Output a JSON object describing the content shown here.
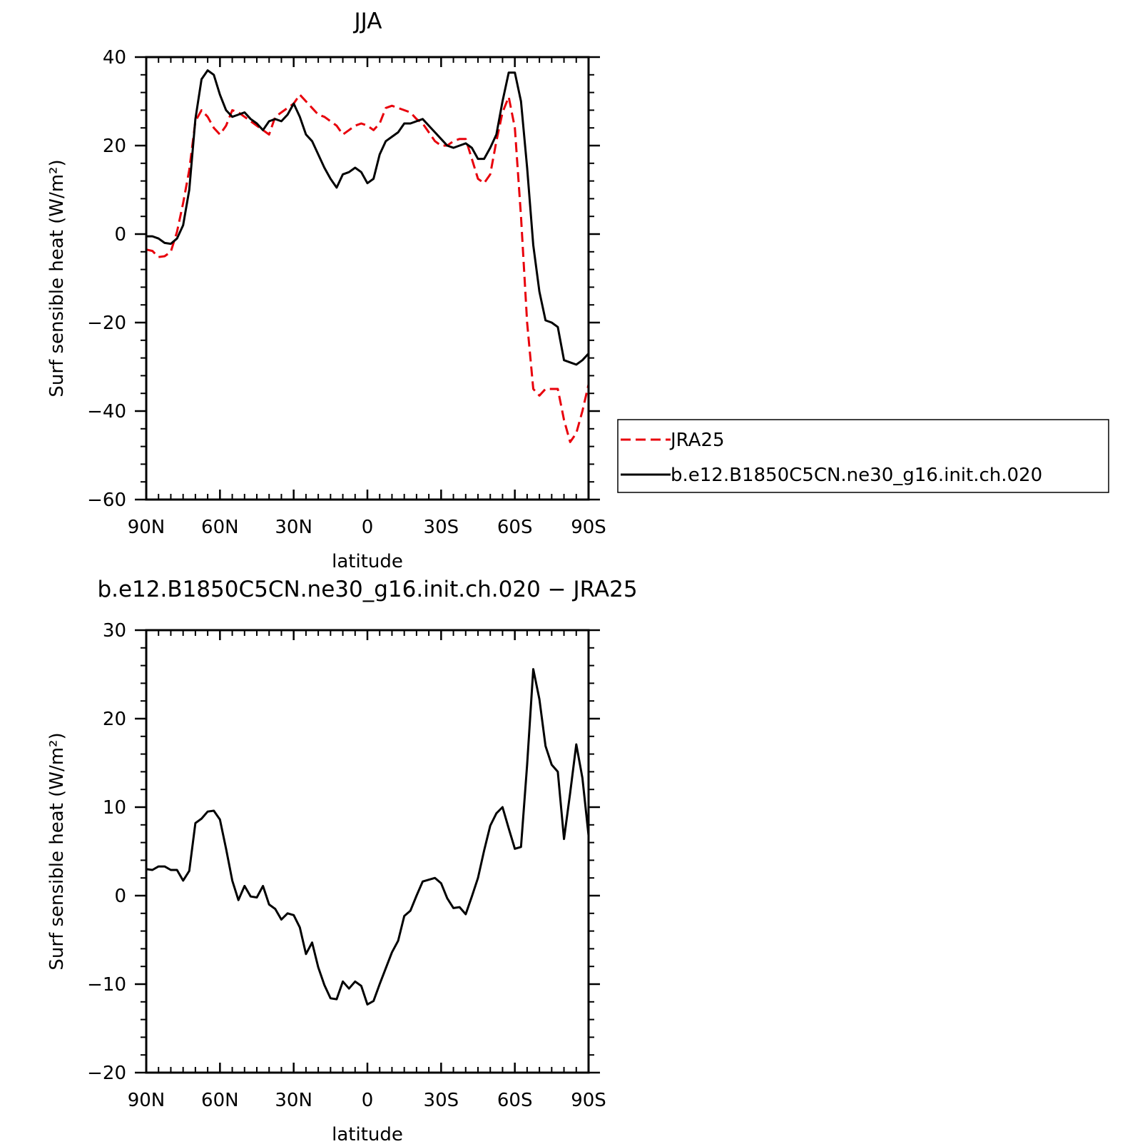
{
  "chart_data": [
    {
      "type": "line",
      "title": "JJA",
      "xlabel": "latitude",
      "ylabel": "Surf sensible heat (W/m²)",
      "xlim": [
        90,
        -90
      ],
      "ylim": [
        -60,
        40
      ],
      "x_ticks": [
        90,
        60,
        30,
        0,
        -30,
        -60,
        -90
      ],
      "x_tick_labels": [
        "90N",
        "60N",
        "30N",
        "0",
        "30S",
        "60S",
        "90S"
      ],
      "y_ticks": [
        -60,
        -40,
        -20,
        0,
        20,
        40
      ],
      "y_tick_labels": [
        "−60",
        "−40",
        "−20",
        "0",
        "20",
        "40"
      ],
      "x": [
        90,
        87.5,
        85,
        82.5,
        80,
        77.5,
        75,
        72.5,
        70,
        67.5,
        65,
        62.5,
        60,
        57.5,
        55,
        52.5,
        50,
        47.5,
        45,
        42.5,
        40,
        37.5,
        35,
        32.5,
        30,
        27.5,
        25,
        22.5,
        20,
        17.5,
        15,
        12.5,
        10,
        7.5,
        5,
        2.5,
        0,
        -2.5,
        -5,
        -7.5,
        -10,
        -12.5,
        -15,
        -17.5,
        -20,
        -22.5,
        -25,
        -27.5,
        -30,
        -32.5,
        -35,
        -37.5,
        -40,
        -42.5,
        -45,
        -47.5,
        -50,
        -52.5,
        -55,
        -57.5,
        -60,
        -62.5,
        -65,
        -67.5,
        -70,
        -72.5,
        -75,
        -77.5,
        -80,
        -82.5,
        -85,
        -87.5,
        -90
      ],
      "legend": {
        "placement": "right",
        "entries": [
          {
            "label": "JRA25",
            "color": "#e8000b",
            "dash": "dashed"
          },
          {
            "label": "b.e12.B1850C5CN.ne30_g16.init.ch.020",
            "color": "#000000",
            "dash": "solid"
          }
        ]
      },
      "series": [
        {
          "name": "JRA25",
          "color": "#e8000b",
          "dash": "dashed",
          "values": [
            -3.5,
            -3.8,
            -5.2,
            -5.0,
            -4.0,
            0.5,
            7,
            14.5,
            25.5,
            28,
            26.5,
            24,
            22.5,
            24.5,
            28,
            27.5,
            26.5,
            25.5,
            24.5,
            23.5,
            22.5,
            26.5,
            27.5,
            28.5,
            29.5,
            31.5,
            30,
            28.5,
            27,
            26.5,
            25.5,
            24.5,
            22.5,
            23.5,
            24.5,
            25,
            24.5,
            23.5,
            25,
            28.5,
            29,
            28.5,
            28,
            27.5,
            26,
            25,
            23,
            21,
            20,
            20,
            21,
            21.5,
            21.5,
            17,
            12.5,
            11.5,
            13.5,
            21,
            27.5,
            31,
            24,
            4,
            -20,
            -35,
            -36.5,
            -35,
            -35,
            -35,
            -42,
            -47,
            -45,
            -40,
            -34
          ]
        },
        {
          "name": "b.e12.B1850C5CN.ne30_g16.init.ch.020",
          "color": "#000000",
          "dash": "solid",
          "values": [
            -0.5,
            -0.5,
            -1.0,
            -2.0,
            -2.2,
            -1.0,
            2.0,
            10,
            26,
            35,
            37,
            36,
            31.5,
            28,
            26.5,
            27,
            27.5,
            26,
            25,
            23.5,
            25.5,
            26,
            25.5,
            27,
            29.5,
            26.5,
            22.5,
            21,
            18,
            15,
            12.5,
            10.5,
            13.5,
            14,
            15,
            14,
            11.5,
            12.5,
            18,
            21,
            22,
            23,
            25,
            25,
            25.5,
            26,
            24.5,
            23,
            21.5,
            20,
            19.5,
            20,
            20.5,
            19.5,
            17,
            17,
            19.5,
            22.5,
            30,
            36.5,
            36.5,
            30,
            15,
            -2.5,
            -13,
            -19.5,
            -20,
            -21,
            -28.5,
            -29,
            -29.5,
            -28.5,
            -27
          ]
        }
      ]
    },
    {
      "type": "line",
      "title": "b.e12.B1850C5CN.ne30_g16.init.ch.020  −  JRA25",
      "xlabel": "latitude",
      "ylabel": "Surf sensible heat (W/m²)",
      "xlim": [
        90,
        -90
      ],
      "ylim": [
        -20,
        30
      ],
      "x_ticks": [
        90,
        60,
        30,
        0,
        -30,
        -60,
        -90
      ],
      "x_tick_labels": [
        "90N",
        "60N",
        "30N",
        "0",
        "30S",
        "60S",
        "90S"
      ],
      "y_ticks": [
        -20,
        -10,
        0,
        10,
        20,
        30
      ],
      "y_tick_labels": [
        "−20",
        "−10",
        "0",
        "10",
        "20",
        "30"
      ],
      "x": [
        90,
        87.5,
        85,
        82.5,
        80,
        77.5,
        75,
        72.5,
        70,
        67.5,
        65,
        62.5,
        60,
        57.5,
        55,
        52.5,
        50,
        47.5,
        45,
        42.5,
        40,
        37.5,
        35,
        32.5,
        30,
        27.5,
        25,
        22.5,
        20,
        17.5,
        15,
        12.5,
        10,
        7.5,
        5,
        2.5,
        0,
        -2.5,
        -5,
        -7.5,
        -10,
        -12.5,
        -15,
        -17.5,
        -20,
        -22.5,
        -25,
        -27.5,
        -30,
        -32.5,
        -35,
        -37.5,
        -40,
        -42.5,
        -45,
        -47.5,
        -50,
        -52.5,
        -55,
        -57.5,
        -60,
        -62.5,
        -65,
        -67.5,
        -70,
        -72.5,
        -75,
        -77.5,
        -80,
        -82.5,
        -85,
        -87.5,
        -90
      ],
      "series": [
        {
          "color": "#000000",
          "dash": "solid",
          "values": [
            3.0,
            2.9,
            3.3,
            3.3,
            2.9,
            2.9,
            1.7,
            2.8,
            8.2,
            8.7,
            9.5,
            9.6,
            8.6,
            5.3,
            1.7,
            -0.5,
            1.1,
            -0.1,
            -0.2,
            1.1,
            -1.0,
            -1.5,
            -2.7,
            -2.0,
            -2.2,
            -3.6,
            -6.6,
            -5.3,
            -8.1,
            -10.1,
            -11.6,
            -11.7,
            -9.7,
            -10.5,
            -9.7,
            -10.2,
            -12.3,
            -11.9,
            -10.0,
            -8.2,
            -6.4,
            -5.1,
            -2.3,
            -1.7,
            0.0,
            1.6,
            1.8,
            2.0,
            1.4,
            -0.3,
            -1.4,
            -1.3,
            -2.1,
            -0.1,
            2.0,
            5.1,
            7.9,
            9.3,
            10.0,
            7.6,
            5.3,
            5.5,
            14.8,
            25.6,
            22.2,
            16.9,
            14.8,
            14.0,
            6.4,
            11.6,
            17.1,
            13.3,
            6.8
          ]
        }
      ]
    }
  ]
}
